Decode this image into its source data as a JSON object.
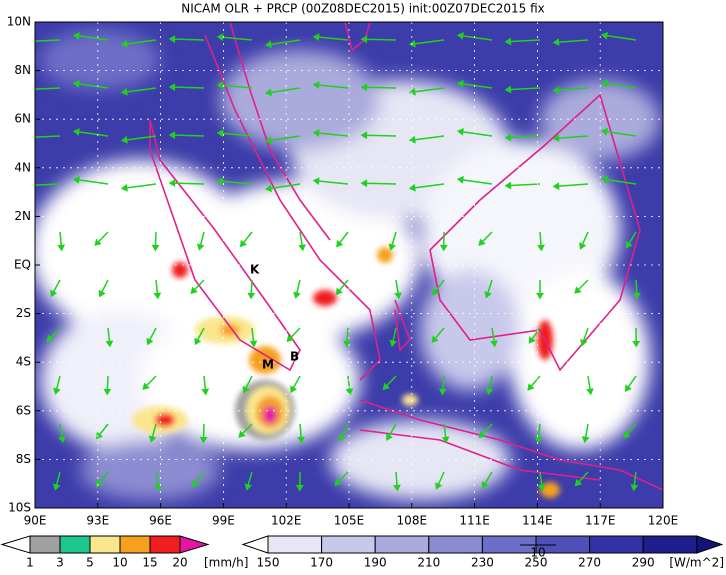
{
  "title": "NICAM OLR + PRCP (00Z08DEC2015) init:00Z07DEC2015 fix",
  "lat_labels": [
    "10N",
    "8N",
    "6N",
    "4N",
    "2N",
    "EQ",
    "2S",
    "4S",
    "6S",
    "8S",
    "10S"
  ],
  "lon_labels": [
    "90E",
    "93E",
    "96E",
    "99E",
    "102E",
    "105E",
    "108E",
    "111E",
    "114E",
    "117E",
    "120E"
  ],
  "place_labels": [
    "K",
    "M",
    "B"
  ],
  "precip_colorbar": {
    "labels": [
      "1",
      "3",
      "5",
      "10",
      "15",
      "20"
    ],
    "unit": "[mm/h]",
    "colors": [
      "#ffffff",
      "#a0a0a0",
      "#1ec88c",
      "#fae68c",
      "#f5a01e",
      "#f01e1e",
      "#e614a0"
    ]
  },
  "olr_colorbar": {
    "labels": [
      "150",
      "170",
      "190",
      "210",
      "230",
      "250",
      "270",
      "290"
    ],
    "unit": "[W/m^2]",
    "colors": [
      "#ffffff",
      "#e6e6f5",
      "#c8c8eb",
      "#aaaadc",
      "#8c8cd2",
      "#6e6ec8",
      "#5050b9",
      "#3232a5",
      "#1e1e8c",
      "#141478"
    ]
  },
  "vector_reference": "10"
}
